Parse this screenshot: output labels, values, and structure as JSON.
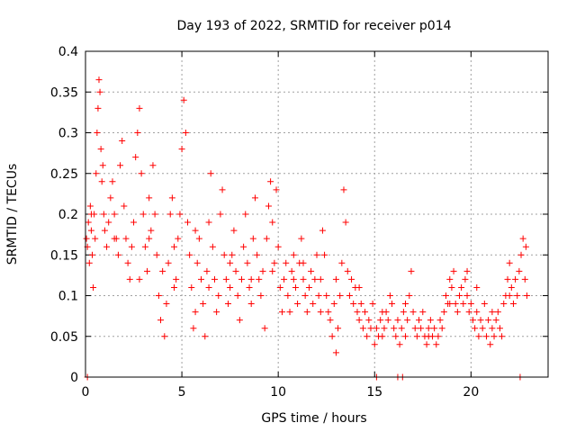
{
  "chart_data": {
    "type": "scatter",
    "title": "Day 193 of 2022, SRMTID for receiver p014",
    "xlabel": "GPS time / hours",
    "ylabel": "SRMTID / TECUs",
    "xlim": [
      0,
      24
    ],
    "ylim": [
      0,
      0.4
    ],
    "xticks": [
      0,
      5,
      10,
      15,
      20
    ],
    "xtick_labels": [
      "0",
      "5",
      "10",
      "15",
      "20"
    ],
    "yticks": [
      0,
      0.05,
      0.1,
      0.15,
      0.2,
      0.25,
      0.3,
      0.35,
      0.4
    ],
    "ytick_labels": [
      "0",
      "0.05",
      "0.1",
      "0.15",
      "0.2",
      "0.25",
      "0.3",
      "0.35",
      "0.4"
    ],
    "grid": true,
    "marker": "+",
    "color": "#ff0000",
    "series": [
      {
        "name": "SRMTID",
        "points": [
          [
            0.05,
            0.17
          ],
          [
            0.1,
            0.16
          ],
          [
            0.15,
            0.19
          ],
          [
            0.2,
            0.14
          ],
          [
            0.25,
            0.21
          ],
          [
            0.3,
            0.18
          ],
          [
            0.35,
            0.15
          ],
          [
            0.4,
            0.11
          ],
          [
            0.45,
            0.2
          ],
          [
            0.5,
            0.17
          ],
          [
            0.55,
            0.25
          ],
          [
            0.6,
            0.3
          ],
          [
            0.65,
            0.33
          ],
          [
            0.7,
            0.365
          ],
          [
            0.75,
            0.35
          ],
          [
            0.8,
            0.28
          ],
          [
            0.85,
            0.24
          ],
          [
            0.9,
            0.26
          ],
          [
            0.95,
            0.2
          ],
          [
            1.0,
            0.18
          ],
          [
            1.1,
            0.16
          ],
          [
            1.2,
            0.19
          ],
          [
            1.3,
            0.22
          ],
          [
            1.4,
            0.24
          ],
          [
            1.5,
            0.2
          ],
          [
            1.6,
            0.17
          ],
          [
            1.7,
            0.15
          ],
          [
            1.8,
            0.26
          ],
          [
            1.9,
            0.29
          ],
          [
            2.0,
            0.21
          ],
          [
            2.1,
            0.17
          ],
          [
            2.2,
            0.14
          ],
          [
            2.3,
            0.12
          ],
          [
            2.4,
            0.16
          ],
          [
            2.5,
            0.19
          ],
          [
            2.6,
            0.27
          ],
          [
            2.7,
            0.3
          ],
          [
            2.8,
            0.33
          ],
          [
            2.9,
            0.25
          ],
          [
            3.0,
            0.2
          ],
          [
            3.1,
            0.16
          ],
          [
            3.2,
            0.13
          ],
          [
            3.3,
            0.22
          ],
          [
            3.4,
            0.18
          ],
          [
            3.5,
            0.26
          ],
          [
            3.6,
            0.2
          ],
          [
            3.7,
            0.15
          ],
          [
            3.8,
            0.1
          ],
          [
            3.9,
            0.07
          ],
          [
            4.0,
            0.13
          ],
          [
            4.1,
            0.05
          ],
          [
            4.2,
            0.09
          ],
          [
            4.3,
            0.14
          ],
          [
            4.4,
            0.2
          ],
          [
            4.5,
            0.22
          ],
          [
            4.6,
            0.16
          ],
          [
            4.7,
            0.12
          ],
          [
            4.8,
            0.17
          ],
          [
            4.9,
            0.2
          ],
          [
            5.0,
            0.28
          ],
          [
            5.1,
            0.34
          ],
          [
            5.2,
            0.3
          ],
          [
            5.3,
            0.19
          ],
          [
            5.4,
            0.15
          ],
          [
            5.5,
            0.11
          ],
          [
            5.6,
            0.06
          ],
          [
            5.7,
            0.08
          ],
          [
            5.8,
            0.14
          ],
          [
            5.9,
            0.17
          ],
          [
            6.0,
            0.12
          ],
          [
            6.1,
            0.09
          ],
          [
            6.2,
            0.05
          ],
          [
            6.3,
            0.13
          ],
          [
            6.4,
            0.19
          ],
          [
            6.5,
            0.25
          ],
          [
            6.6,
            0.16
          ],
          [
            6.7,
            0.12
          ],
          [
            6.8,
            0.08
          ],
          [
            6.9,
            0.1
          ],
          [
            7.0,
            0.2
          ],
          [
            7.1,
            0.23
          ],
          [
            7.2,
            0.15
          ],
          [
            7.3,
            0.12
          ],
          [
            7.4,
            0.09
          ],
          [
            7.5,
            0.11
          ],
          [
            7.6,
            0.15
          ],
          [
            7.7,
            0.18
          ],
          [
            7.8,
            0.13
          ],
          [
            7.9,
            0.1
          ],
          [
            8.0,
            0.07
          ],
          [
            8.1,
            0.12
          ],
          [
            8.2,
            0.16
          ],
          [
            8.3,
            0.2
          ],
          [
            8.4,
            0.14
          ],
          [
            8.5,
            0.11
          ],
          [
            8.6,
            0.09
          ],
          [
            8.7,
            0.17
          ],
          [
            8.8,
            0.22
          ],
          [
            8.9,
            0.15
          ],
          [
            9.0,
            0.12
          ],
          [
            9.1,
            0.1
          ],
          [
            9.2,
            0.13
          ],
          [
            9.3,
            0.06
          ],
          [
            9.4,
            0.17
          ],
          [
            9.5,
            0.21
          ],
          [
            9.6,
            0.24
          ],
          [
            9.7,
            0.19
          ],
          [
            9.8,
            0.14
          ],
          [
            9.9,
            0.23
          ],
          [
            10.0,
            0.16
          ],
          [
            10.1,
            0.11
          ],
          [
            10.2,
            0.08
          ],
          [
            10.3,
            0.12
          ],
          [
            10.4,
            0.14
          ],
          [
            10.5,
            0.1
          ],
          [
            10.6,
            0.08
          ],
          [
            10.7,
            0.13
          ],
          [
            10.8,
            0.15
          ],
          [
            10.9,
            0.11
          ],
          [
            11.0,
            0.09
          ],
          [
            11.1,
            0.14
          ],
          [
            11.2,
            0.17
          ],
          [
            11.3,
            0.12
          ],
          [
            11.4,
            0.1
          ],
          [
            11.5,
            0.08
          ],
          [
            11.6,
            0.11
          ],
          [
            11.7,
            0.13
          ],
          [
            11.8,
            0.09
          ],
          [
            11.9,
            0.12
          ],
          [
            12.0,
            0.15
          ],
          [
            12.1,
            0.1
          ],
          [
            12.2,
            0.08
          ],
          [
            12.3,
            0.18
          ],
          [
            12.4,
            0.15
          ],
          [
            12.5,
            0.1
          ],
          [
            12.6,
            0.08
          ],
          [
            12.7,
            0.07
          ],
          [
            12.8,
            0.05
          ],
          [
            12.9,
            0.09
          ],
          [
            13.0,
            0.03
          ],
          [
            13.1,
            0.06
          ],
          [
            13.2,
            0.1
          ],
          [
            13.3,
            0.14
          ],
          [
            13.4,
            0.23
          ],
          [
            13.5,
            0.19
          ],
          [
            13.6,
            0.13
          ],
          [
            13.7,
            0.1
          ],
          [
            13.8,
            0.12
          ],
          [
            13.9,
            0.09
          ],
          [
            14.0,
            0.11
          ],
          [
            14.1,
            0.08
          ],
          [
            14.2,
            0.07
          ],
          [
            14.3,
            0.09
          ],
          [
            14.4,
            0.06
          ],
          [
            14.5,
            0.08
          ],
          [
            14.6,
            0.05
          ],
          [
            14.7,
            0.07
          ],
          [
            14.8,
            0.06
          ],
          [
            14.9,
            0.09
          ],
          [
            15.0,
            0.04
          ],
          [
            15.1,
            0.06
          ],
          [
            15.2,
            0.05
          ],
          [
            15.3,
            0.07
          ],
          [
            15.4,
            0.05
          ],
          [
            15.5,
            0.06
          ],
          [
            15.6,
            0.08
          ],
          [
            15.7,
            0.07
          ],
          [
            15.8,
            0.1
          ],
          [
            15.9,
            0.09
          ],
          [
            16.0,
            0.06
          ],
          [
            16.1,
            0.05
          ],
          [
            16.2,
            0.07
          ],
          [
            16.3,
            0.04
          ],
          [
            16.4,
            0.06
          ],
          [
            16.5,
            0.08
          ],
          [
            16.6,
            0.05
          ],
          [
            16.7,
            0.07
          ],
          [
            16.8,
            0.1
          ],
          [
            16.9,
            0.13
          ],
          [
            17.0,
            0.08
          ],
          [
            17.1,
            0.06
          ],
          [
            17.2,
            0.05
          ],
          [
            17.3,
            0.07
          ],
          [
            17.4,
            0.06
          ],
          [
            17.5,
            0.08
          ],
          [
            17.6,
            0.05
          ],
          [
            17.7,
            0.04
          ],
          [
            17.8,
            0.06
          ],
          [
            17.9,
            0.07
          ],
          [
            18.0,
            0.05
          ],
          [
            18.1,
            0.06
          ],
          [
            18.2,
            0.04
          ],
          [
            18.3,
            0.05
          ],
          [
            18.4,
            0.07
          ],
          [
            18.5,
            0.06
          ],
          [
            18.6,
            0.08
          ],
          [
            18.7,
            0.1
          ],
          [
            18.8,
            0.09
          ],
          [
            18.9,
            0.12
          ],
          [
            19.0,
            0.11
          ],
          [
            19.1,
            0.13
          ],
          [
            19.2,
            0.09
          ],
          [
            19.3,
            0.08
          ],
          [
            19.4,
            0.1
          ],
          [
            19.5,
            0.11
          ],
          [
            19.6,
            0.09
          ],
          [
            19.7,
            0.12
          ],
          [
            19.8,
            0.1
          ],
          [
            19.9,
            0.08
          ],
          [
            20.0,
            0.09
          ],
          [
            20.1,
            0.07
          ],
          [
            20.2,
            0.06
          ],
          [
            20.3,
            0.08
          ],
          [
            20.4,
            0.05
          ],
          [
            20.5,
            0.07
          ],
          [
            20.6,
            0.06
          ],
          [
            20.7,
            0.09
          ],
          [
            20.8,
            0.05
          ],
          [
            20.9,
            0.07
          ],
          [
            21.0,
            0.04
          ],
          [
            21.1,
            0.06
          ],
          [
            21.2,
            0.05
          ],
          [
            21.3,
            0.07
          ],
          [
            21.4,
            0.08
          ],
          [
            21.5,
            0.06
          ],
          [
            21.6,
            0.05
          ],
          [
            21.7,
            0.09
          ],
          [
            21.8,
            0.1
          ],
          [
            21.9,
            0.12
          ],
          [
            22.0,
            0.14
          ],
          [
            22.1,
            0.11
          ],
          [
            22.2,
            0.09
          ],
          [
            22.3,
            0.12
          ],
          [
            22.4,
            0.1
          ],
          [
            22.5,
            0.13
          ],
          [
            22.6,
            0.15
          ],
          [
            22.7,
            0.17
          ],
          [
            22.8,
            0.12
          ],
          [
            22.85,
            0.16
          ],
          [
            22.9,
            0.1
          ],
          [
            0.1,
            0
          ],
          [
            15.1,
            0
          ],
          [
            16.2,
            0
          ],
          [
            16.45,
            0
          ],
          [
            22.55,
            0
          ],
          [
            0.3,
            0.2
          ],
          [
            1.5,
            0.17
          ],
          [
            2.8,
            0.12
          ],
          [
            3.3,
            0.17
          ],
          [
            4.6,
            0.11
          ],
          [
            5.7,
            0.18
          ],
          [
            6.4,
            0.11
          ],
          [
            7.5,
            0.14
          ],
          [
            8.6,
            0.12
          ],
          [
            9.7,
            0.13
          ],
          [
            10.8,
            0.12
          ],
          [
            11.3,
            0.14
          ],
          [
            12.2,
            0.12
          ],
          [
            13.0,
            0.12
          ],
          [
            14.2,
            0.11
          ],
          [
            15.4,
            0.08
          ],
          [
            16.6,
            0.09
          ],
          [
            17.8,
            0.05
          ],
          [
            18.9,
            0.09
          ],
          [
            19.8,
            0.13
          ],
          [
            20.3,
            0.11
          ],
          [
            21.1,
            0.08
          ],
          [
            22.0,
            0.1
          ]
        ]
      }
    ]
  }
}
